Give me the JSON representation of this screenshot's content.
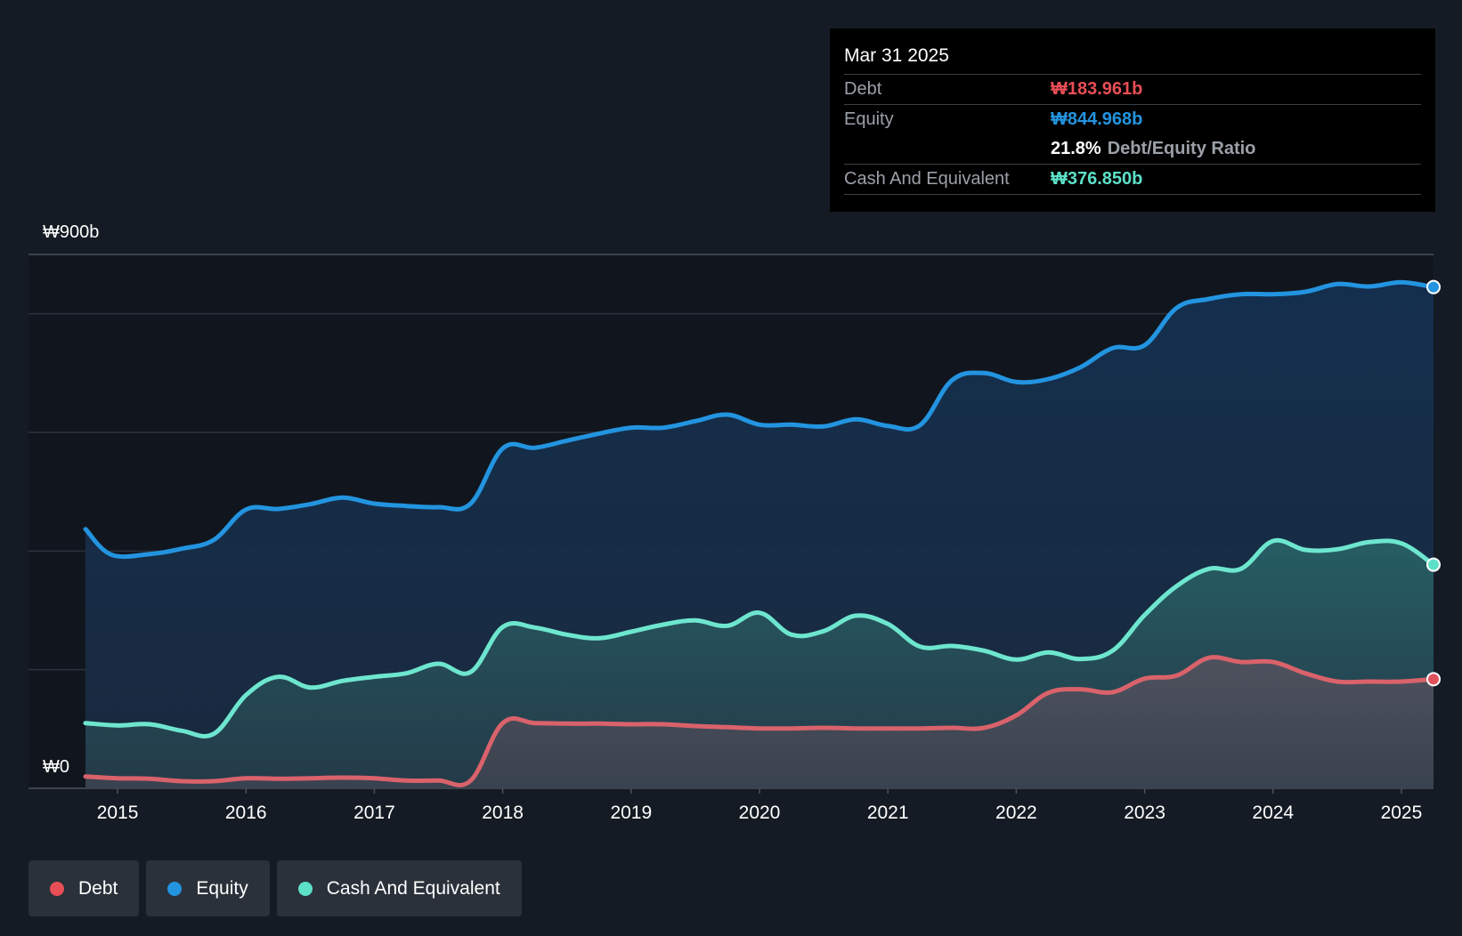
{
  "chart_data": {
    "type": "area",
    "y_max_label": "₩900b",
    "y_min_label": "₩0",
    "ylim": [
      0,
      900
    ],
    "xlim": [
      2014.75,
      2025.25
    ],
    "x_ticks": [
      "2015",
      "2016",
      "2017",
      "2018",
      "2019",
      "2020",
      "2021",
      "2022",
      "2023",
      "2024",
      "2025"
    ],
    "series": [
      {
        "name": "Equity",
        "color": "#2394e0",
        "points": [
          [
            2014.75,
            437
          ],
          [
            2014.95,
            394
          ],
          [
            2015.25,
            395
          ],
          [
            2015.5,
            404
          ],
          [
            2015.75,
            419
          ],
          [
            2016.0,
            470
          ],
          [
            2016.25,
            471
          ],
          [
            2016.5,
            479
          ],
          [
            2016.75,
            490
          ],
          [
            2017.0,
            480
          ],
          [
            2017.25,
            476
          ],
          [
            2017.5,
            474
          ],
          [
            2017.75,
            480
          ],
          [
            2018.0,
            573
          ],
          [
            2018.25,
            574
          ],
          [
            2018.5,
            586
          ],
          [
            2018.75,
            598
          ],
          [
            2019.0,
            608
          ],
          [
            2019.25,
            608
          ],
          [
            2019.5,
            619
          ],
          [
            2019.75,
            630
          ],
          [
            2020.0,
            613
          ],
          [
            2020.25,
            613
          ],
          [
            2020.5,
            610
          ],
          [
            2020.75,
            622
          ],
          [
            2021.0,
            611
          ],
          [
            2021.25,
            612
          ],
          [
            2021.5,
            688
          ],
          [
            2021.75,
            700
          ],
          [
            2022.0,
            685
          ],
          [
            2022.25,
            690
          ],
          [
            2022.5,
            710
          ],
          [
            2022.75,
            742
          ],
          [
            2023.0,
            747
          ],
          [
            2023.25,
            810
          ],
          [
            2023.5,
            825
          ],
          [
            2023.75,
            833
          ],
          [
            2024.0,
            833
          ],
          [
            2024.25,
            837
          ],
          [
            2024.5,
            850
          ],
          [
            2024.75,
            846
          ],
          [
            2025.0,
            853
          ],
          [
            2025.25,
            845
          ]
        ]
      },
      {
        "name": "Cash And Equivalent",
        "color": "#5de0c8",
        "points": [
          [
            2014.75,
            110
          ],
          [
            2015.0,
            106
          ],
          [
            2015.25,
            108
          ],
          [
            2015.5,
            97
          ],
          [
            2015.75,
            92
          ],
          [
            2016.0,
            157
          ],
          [
            2016.25,
            188
          ],
          [
            2016.5,
            170
          ],
          [
            2016.75,
            181
          ],
          [
            2017.0,
            188
          ],
          [
            2017.25,
            194
          ],
          [
            2017.5,
            210
          ],
          [
            2017.75,
            196
          ],
          [
            2018.0,
            272
          ],
          [
            2018.25,
            271
          ],
          [
            2018.5,
            259
          ],
          [
            2018.75,
            253
          ],
          [
            2019.0,
            264
          ],
          [
            2019.25,
            276
          ],
          [
            2019.5,
            283
          ],
          [
            2019.75,
            274
          ],
          [
            2020.0,
            296
          ],
          [
            2020.25,
            259
          ],
          [
            2020.5,
            265
          ],
          [
            2020.75,
            291
          ],
          [
            2021.0,
            277
          ],
          [
            2021.25,
            239
          ],
          [
            2021.5,
            240
          ],
          [
            2021.75,
            232
          ],
          [
            2022.0,
            217
          ],
          [
            2022.25,
            229
          ],
          [
            2022.5,
            218
          ],
          [
            2022.75,
            232
          ],
          [
            2023.0,
            292
          ],
          [
            2023.25,
            341
          ],
          [
            2023.5,
            370
          ],
          [
            2023.75,
            370
          ],
          [
            2024.0,
            417
          ],
          [
            2024.25,
            402
          ],
          [
            2024.5,
            403
          ],
          [
            2024.75,
            415
          ],
          [
            2025.0,
            413
          ],
          [
            2025.25,
            377
          ]
        ]
      },
      {
        "name": "Debt",
        "color": "#e0525c",
        "points": [
          [
            2014.75,
            20
          ],
          [
            2015.0,
            17
          ],
          [
            2015.25,
            16
          ],
          [
            2015.5,
            12
          ],
          [
            2015.75,
            12
          ],
          [
            2016.0,
            17
          ],
          [
            2016.25,
            16
          ],
          [
            2016.5,
            17
          ],
          [
            2016.75,
            18
          ],
          [
            2017.0,
            17
          ],
          [
            2017.25,
            13
          ],
          [
            2017.5,
            13
          ],
          [
            2017.75,
            13
          ],
          [
            2018.0,
            110
          ],
          [
            2018.25,
            110
          ],
          [
            2018.5,
            109
          ],
          [
            2018.75,
            109
          ],
          [
            2019.0,
            108
          ],
          [
            2019.25,
            108
          ],
          [
            2019.5,
            105
          ],
          [
            2019.75,
            103
          ],
          [
            2020.0,
            101
          ],
          [
            2020.25,
            101
          ],
          [
            2020.5,
            102
          ],
          [
            2020.75,
            101
          ],
          [
            2021.0,
            101
          ],
          [
            2021.25,
            101
          ],
          [
            2021.5,
            102
          ],
          [
            2021.75,
            102
          ],
          [
            2022.0,
            123
          ],
          [
            2022.25,
            161
          ],
          [
            2022.5,
            167
          ],
          [
            2022.75,
            162
          ],
          [
            2023.0,
            185
          ],
          [
            2023.25,
            190
          ],
          [
            2023.5,
            220
          ],
          [
            2023.75,
            213
          ],
          [
            2024.0,
            213
          ],
          [
            2024.25,
            194
          ],
          [
            2024.5,
            180
          ],
          [
            2024.75,
            180
          ],
          [
            2025.0,
            180
          ],
          [
            2025.25,
            184
          ]
        ]
      }
    ],
    "tooltip": {
      "date": "Mar 31 2025",
      "debt_label": "Debt",
      "debt_value": "₩183.961b",
      "equity_label": "Equity",
      "equity_value": "₩844.968b",
      "ratio_value": "21.8%",
      "ratio_label": "Debt/Equity Ratio",
      "cash_label": "Cash And Equivalent",
      "cash_value": "₩376.850b"
    },
    "legend": [
      {
        "label": "Debt",
        "color": "#e0525c"
      },
      {
        "label": "Equity",
        "color": "#2394e0"
      },
      {
        "label": "Cash And Equivalent",
        "color": "#5de0c8"
      }
    ]
  }
}
